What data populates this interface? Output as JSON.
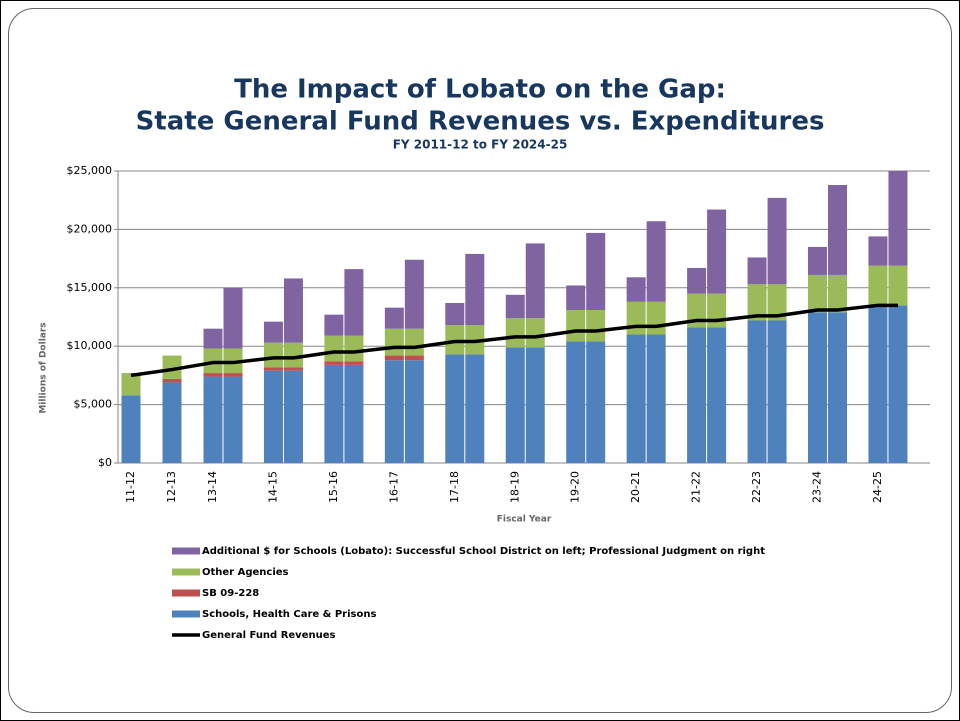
{
  "chart_data": {
    "type": "bar",
    "title": [
      "The Impact of Lobato on the Gap:",
      "State General Fund Revenues vs. Expenditures"
    ],
    "subtitle": "FY 2011-12 to FY 2024-25",
    "y_label": "Millions of Dollars",
    "x_label": "Fiscal Year",
    "categories": [
      "11-12",
      "12-13",
      "13-14",
      null,
      "14-15",
      null,
      "15-16",
      null,
      "16-17",
      null,
      "17-18",
      null,
      "18-19",
      null,
      "19-20",
      null,
      "20-21",
      null,
      "21-22",
      null,
      "22-23",
      null,
      "23-24",
      null,
      "24-25",
      null
    ],
    "stacked": true,
    "grid": true,
    "ylim": [
      0,
      25000
    ],
    "yticks": [
      {
        "value": 0,
        "label": "$0"
      },
      {
        "value": 5000,
        "label": "$5,000"
      },
      {
        "value": 10000,
        "label": "$10,000"
      },
      {
        "value": 15000,
        "label": "$15,000"
      },
      {
        "value": 20000,
        "label": "$20,000"
      },
      {
        "value": 25000,
        "label": "$25,000"
      }
    ],
    "legend": "bottom",
    "series": [
      {
        "name": "Additional $ for Schools (Lobato): Successful School District on left; Professional Judgment on right",
        "color": "#8064a2",
        "values": [
          null,
          null,
          1700,
          5200,
          1800,
          5500,
          1800,
          5700,
          1800,
          5900,
          1900,
          6100,
          2000,
          6400,
          2100,
          6600,
          2100,
          6900,
          2200,
          7200,
          2300,
          7400,
          2400,
          7700,
          2500,
          8100
        ]
      },
      {
        "name": "Other Agencies",
        "color": "#9bbb59",
        "values": [
          1900,
          2000,
          2100,
          2100,
          2100,
          2100,
          2200,
          2200,
          2300,
          2300,
          2500,
          2500,
          2500,
          2500,
          2700,
          2700,
          2800,
          2800,
          2900,
          2900,
          3100,
          3100,
          3200,
          3200,
          3400,
          3400
        ]
      },
      {
        "name": "SB 09-228",
        "color": "#c0504d",
        "values": [
          null,
          300,
          300,
          300,
          300,
          300,
          300,
          300,
          400,
          400,
          null,
          null,
          null,
          null,
          null,
          null,
          null,
          null,
          null,
          null,
          null,
          null,
          null,
          null,
          null,
          null
        ]
      },
      {
        "name": "Schools, Health Care & Prisons",
        "color": "#4f81bd",
        "values": [
          5800,
          6900,
          7400,
          7400,
          7900,
          7900,
          8400,
          8400,
          8800,
          8800,
          9300,
          9300,
          9900,
          9900,
          10400,
          10400,
          11000,
          11000,
          11600,
          11600,
          12200,
          12200,
          12900,
          12900,
          13500,
          13500
        ]
      },
      {
        "name": "General Fund Revenues",
        "type": "line",
        "color": "#000000",
        "values": [
          7500,
          8000,
          8600,
          8600,
          9000,
          9000,
          9500,
          9500,
          9900,
          9900,
          10400,
          10400,
          10800,
          10800,
          11300,
          11300,
          11700,
          11700,
          12200,
          12200,
          12600,
          12600,
          13100,
          13100,
          13500,
          13500
        ]
      }
    ]
  }
}
